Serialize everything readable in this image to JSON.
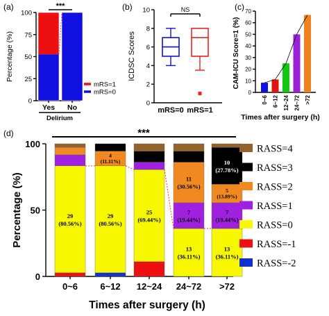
{
  "chart_data": [
    {
      "panel": "(a)",
      "type": "bar",
      "stacked": true,
      "ylabel": "Percentage (%)",
      "xlabel": "Delirium",
      "categories": [
        "Yes",
        "No"
      ],
      "yticks": [
        "0",
        "25",
        "50",
        "75",
        "100"
      ],
      "ylim": [
        0,
        100
      ],
      "significance": "***",
      "series": [
        {
          "name": "mRS=0",
          "color": "#1010e0",
          "values": [
            52.6,
            100
          ]
        },
        {
          "name": "mRS=1",
          "color": "#ee1010",
          "values": [
            47.4,
            0
          ]
        }
      ],
      "legend_placement": "right"
    },
    {
      "panel": "(b)",
      "type": "box",
      "ylabel": "ICDSC Scores",
      "categories": [
        "mRS=0",
        "mRS=1"
      ],
      "yticks": [
        "0",
        "2",
        "4",
        "6",
        "8",
        "10"
      ],
      "ylim": [
        0,
        10
      ],
      "significance": "NS",
      "boxes": [
        {
          "color": "#1010dd",
          "min": 4,
          "q1": 5,
          "median": 6,
          "q3": 7,
          "max": 8,
          "outliers": []
        },
        {
          "color": "#ee2020",
          "min": 3.5,
          "q1": 5,
          "median": 7,
          "q3": 8,
          "max": 8,
          "outliers": [
            1
          ]
        }
      ]
    },
    {
      "panel": "(c)",
      "type": "bar",
      "ylabel": "CAM-ICU Score=1 (%)",
      "xlabel": "Times after surgery (h)",
      "categories": [
        "0~6",
        "6~12",
        "12~24",
        "24~72",
        ">72"
      ],
      "yticks": [
        "0",
        "10",
        "20",
        "30",
        "40",
        "50",
        "60",
        "70"
      ],
      "ylim": [
        0,
        70
      ],
      "values": [
        8.3,
        11.1,
        25.0,
        50.0,
        66.7
      ],
      "colors": [
        "#1010e0",
        "#e51010",
        "#10c810",
        "#9b20d8",
        "#f08020"
      ],
      "trend_line": true
    },
    {
      "panel": "(d)",
      "type": "bar",
      "stacked": true,
      "ylabel": "Percentage (%)",
      "xlabel": "Times after surgery (h)",
      "categories": [
        "0~6",
        "6~12",
        "12~24",
        "24~72",
        ">72"
      ],
      "yticks": [
        "0",
        "50",
        "100"
      ],
      "ylim": [
        0,
        100
      ],
      "significance": "***",
      "series": [
        {
          "name": "RASS=-2",
          "color": "#1030d0",
          "values": [
            0,
            2.78,
            0,
            0,
            0
          ]
        },
        {
          "name": "RASS=-1",
          "color": "#ee1010",
          "values": [
            2.78,
            0,
            11.11,
            0,
            0
          ]
        },
        {
          "name": "RASS=0",
          "color": "#f8f800",
          "values": [
            80.56,
            80.56,
            69.44,
            36.11,
            36.11
          ]
        },
        {
          "name": "RASS=1",
          "color": "#a020e0",
          "values": [
            8.33,
            0,
            5.56,
            19.44,
            19.44
          ]
        },
        {
          "name": "RASS=2",
          "color": "#f08a20",
          "values": [
            5.56,
            11.11,
            0,
            30.56,
            13.89
          ]
        },
        {
          "name": "RASS=3",
          "color": "#000000",
          "values": [
            0,
            5.56,
            8.33,
            8.33,
            27.78
          ]
        },
        {
          "name": "RASS=4",
          "color": "#94632a",
          "values": [
            2.77,
            0,
            5.56,
            5.56,
            2.78
          ]
        }
      ],
      "segment_labels": [
        {
          "bar": 0,
          "series": "RASS=0",
          "count": "29",
          "pct": "(80.56%)"
        },
        {
          "bar": 1,
          "series": "RASS=0",
          "count": "29",
          "pct": "(80.56%)"
        },
        {
          "bar": 1,
          "series": "RASS=2",
          "count": "4",
          "pct": "(11.11%)"
        },
        {
          "bar": 2,
          "series": "RASS=0",
          "count": "25",
          "pct": "(69.44%)"
        },
        {
          "bar": 3,
          "series": "RASS=0",
          "count": "13",
          "pct": "(36.11%)"
        },
        {
          "bar": 3,
          "series": "RASS=1",
          "count": "7",
          "pct": "(19.44%)"
        },
        {
          "bar": 3,
          "series": "RASS=2",
          "count": "11",
          "pct": "(30.56%)"
        },
        {
          "bar": 4,
          "series": "RASS=0",
          "count": "13",
          "pct": "(36.11%)"
        },
        {
          "bar": 4,
          "series": "RASS=1",
          "count": "7",
          "pct": "(19.44%)"
        },
        {
          "bar": 4,
          "series": "RASS=2",
          "count": "5",
          "pct": "(13.89%)"
        },
        {
          "bar": 4,
          "series": "RASS=3",
          "count": "10",
          "pct": "(27.78%)"
        }
      ],
      "legend_placement": "right"
    }
  ]
}
